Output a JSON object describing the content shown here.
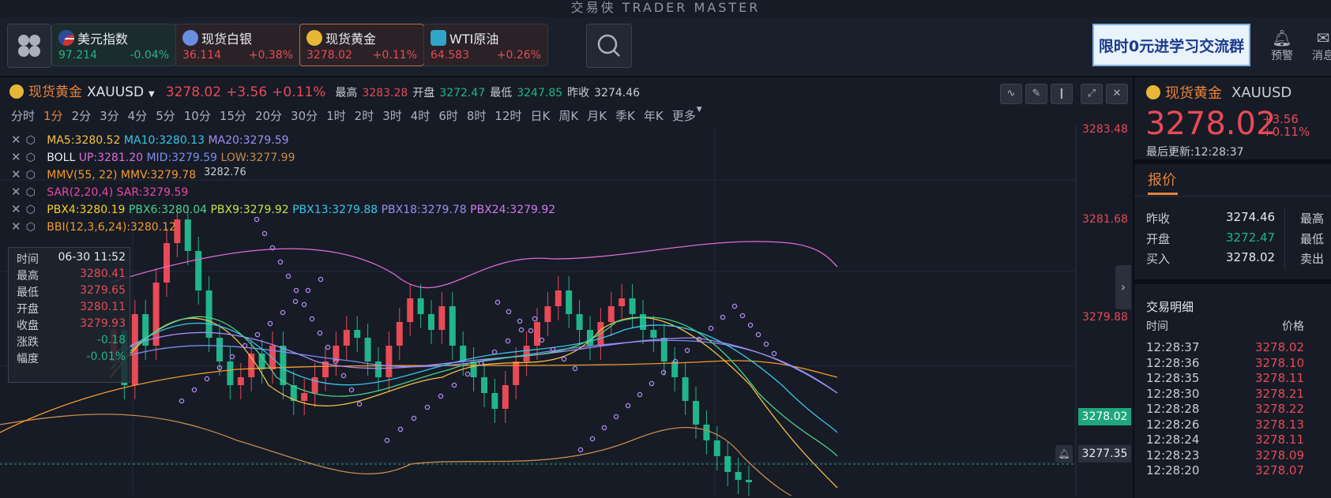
{
  "brand": "交易侠  TRADER MASTER",
  "tickers": [
    {
      "name": "美元指数",
      "price": "97.214",
      "change": "-0.04%",
      "dir": "down",
      "icon": "us-flag-icon"
    },
    {
      "name": "现货白银",
      "price": "36.114",
      "change": "+0.38%",
      "dir": "up",
      "icon": "silver-icon"
    },
    {
      "name": "现货黄金",
      "price": "3278.02",
      "change": "+0.11%",
      "dir": "up",
      "icon": "gold-icon",
      "active": true
    },
    {
      "name": "WTI原油",
      "price": "64.583",
      "change": "+0.26%",
      "dir": "up",
      "icon": "oil-icon"
    }
  ],
  "promo": "限时0元进学习交流群",
  "top_actions": {
    "alert": "预警",
    "message": "消息"
  },
  "symbol": {
    "name": "现货黄金",
    "code": "XAUUSD",
    "price": "3278.02",
    "change": "+3.56",
    "pct": "+0.11%",
    "high_label": "最高",
    "high": "3283.28",
    "open_label": "开盘",
    "open": "3272.47",
    "low_label": "最低",
    "low": "3247.85",
    "prev_label": "昨收",
    "prev": "3274.46"
  },
  "periods": [
    "分时",
    "1分",
    "2分",
    "3分",
    "4分",
    "5分",
    "10分",
    "15分",
    "20分",
    "30分",
    "1时",
    "2时",
    "3时",
    "4时",
    "6时",
    "8时",
    "12时",
    "日K",
    "周K",
    "月K",
    "季K",
    "年K",
    "更多"
  ],
  "active_period": "1分",
  "indicators": {
    "ma": {
      "ma5": "MA5:3280.52",
      "ma10": "MA10:3280.13",
      "ma20": "MA20:3279.59"
    },
    "boll": {
      "name": "BOLL",
      "up": "UP:3281.20",
      "mid": "MID:3279.59",
      "low": "LOW:3277.99"
    },
    "mmv": {
      "name": "MMV(55, 22)",
      "val": "MMV:3279.78"
    },
    "sar": {
      "name": "SAR(2,20,4)",
      "val": "SAR:3279.59"
    },
    "pbx": {
      "p4": "PBX4:3280.19",
      "p6": "PBX6:3280.04",
      "p9": "PBX9:3279.92",
      "p13": "PBX13:3279.88",
      "p18": "PBX18:3279.78",
      "p24": "PBX24:3279.92"
    },
    "bbi": {
      "val": "BBI(12,3,6,24):3280.12"
    }
  },
  "tooltip": {
    "time_label": "时间",
    "time": "06-30 11:52",
    "high_label": "最高",
    "high": "3280.41",
    "low_label": "最低",
    "low": "3279.65",
    "open_label": "开盘",
    "open": "3280.11",
    "close_label": "收盘",
    "close": "3279.93",
    "chg_label": "涨跌",
    "chg": "-0.18",
    "amp_label": "幅度",
    "amp": "-0.01%"
  },
  "y_axis": [
    "3283.48",
    "3281.68",
    "3279.88"
  ],
  "current_price_label": "3278.02",
  "hover_price_label": "3277.35",
  "max_marker": "3282.76",
  "right_panel": {
    "name": "现货黄金",
    "code": "XAUUSD",
    "price": "3278.02",
    "change": "+3.56",
    "pct": "+0.11%",
    "updated": "最后更新:12:28:37",
    "tab": "报价",
    "rows": [
      {
        "label": "昨收",
        "value": "3274.46",
        "label2": "最高"
      },
      {
        "label": "开盘",
        "value": "3272.47",
        "label2": "最低"
      },
      {
        "label": "买入",
        "value": "3278.02",
        "label2": "卖出"
      }
    ],
    "trades_title": "交易明细",
    "col_time": "时间",
    "col_price": "价格",
    "trades": [
      {
        "time": "12:28:37",
        "price": "3278.02"
      },
      {
        "time": "12:28:36",
        "price": "3278.10"
      },
      {
        "time": "12:28:35",
        "price": "3278.11"
      },
      {
        "time": "12:28:30",
        "price": "3278.21"
      },
      {
        "time": "12:28:28",
        "price": "3278.22"
      },
      {
        "time": "12:28:26",
        "price": "3278.13"
      },
      {
        "time": "12:28:24",
        "price": "3278.11"
      },
      {
        "time": "12:28:23",
        "price": "3278.09"
      },
      {
        "time": "12:28:20",
        "price": "3278.07"
      }
    ]
  },
  "colors": {
    "up": "#e84a56",
    "down": "#20b58a",
    "accent": "#e8833a"
  }
}
